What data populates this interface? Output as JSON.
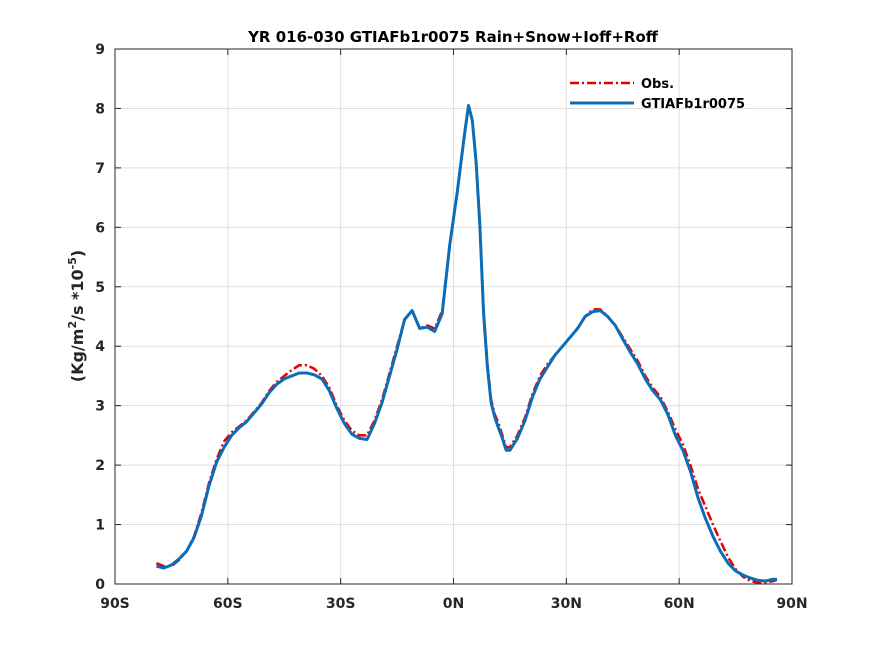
{
  "chart_data": {
    "type": "line",
    "title": "YR 016-030 GTIAFb1r0075  Rain+Snow+Ioff+Roff",
    "ylabel": {
      "prefix": "(Kg/m",
      "sup1": "2",
      "middle": "/s *10",
      "sup2": "-5",
      "suffix": ")"
    },
    "xlim": [
      -90,
      90
    ],
    "ylim": [
      0,
      9
    ],
    "grid": true,
    "legend_position": "top-right",
    "x_ticks": [
      {
        "value": -90,
        "label": "90S"
      },
      {
        "value": -60,
        "label": "60S"
      },
      {
        "value": -30,
        "label": "30S"
      },
      {
        "value": 0,
        "label": "0N"
      },
      {
        "value": 30,
        "label": "30N"
      },
      {
        "value": 60,
        "label": "60N"
      },
      {
        "value": 90,
        "label": "90N"
      }
    ],
    "y_ticks": [
      {
        "value": 0,
        "label": "0"
      },
      {
        "value": 1,
        "label": "1"
      },
      {
        "value": 2,
        "label": "2"
      },
      {
        "value": 3,
        "label": "3"
      },
      {
        "value": 4,
        "label": "4"
      },
      {
        "value": 5,
        "label": "5"
      },
      {
        "value": 6,
        "label": "6"
      },
      {
        "value": 7,
        "label": "7"
      },
      {
        "value": 8,
        "label": "8"
      },
      {
        "value": 9,
        "label": "9"
      }
    ],
    "series": [
      {
        "name": "Obs.",
        "color": "#e60000",
        "style": "dash-dot",
        "x": [
          -79,
          -77,
          -75,
          -73,
          -71,
          -69,
          -67,
          -65,
          -63,
          -61,
          -59,
          -57,
          -55,
          -53,
          -51,
          -49,
          -47,
          -45,
          -43,
          -41,
          -39,
          -37,
          -35,
          -33,
          -31,
          -29,
          -27,
          -25,
          -23,
          -21,
          -19,
          -17,
          -15,
          -13,
          -11,
          -9,
          -7,
          -5,
          -3,
          -1,
          1,
          2,
          3,
          4,
          5,
          6,
          7,
          8,
          9,
          10,
          11,
          12,
          13,
          14,
          15,
          17,
          19,
          21,
          23,
          25,
          27,
          29,
          31,
          33,
          35,
          37,
          39,
          41,
          43,
          45,
          47,
          49,
          51,
          53,
          55,
          57,
          59,
          61,
          63,
          65,
          67,
          69,
          71,
          73,
          75,
          77,
          79,
          81,
          83,
          85,
          86
        ],
        "y": [
          0.35,
          0.3,
          0.3,
          0.4,
          0.55,
          0.8,
          1.2,
          1.7,
          2.1,
          2.4,
          2.55,
          2.65,
          2.75,
          2.9,
          3.05,
          3.25,
          3.4,
          3.5,
          3.6,
          3.68,
          3.68,
          3.62,
          3.5,
          3.3,
          3.0,
          2.75,
          2.58,
          2.5,
          2.5,
          2.75,
          3.1,
          3.55,
          4.0,
          4.45,
          4.6,
          4.3,
          4.35,
          4.3,
          4.6,
          5.7,
          6.6,
          7.1,
          7.6,
          8.05,
          7.8,
          7.1,
          6.1,
          4.6,
          3.7,
          3.1,
          2.85,
          2.7,
          2.5,
          2.3,
          2.3,
          2.5,
          2.8,
          3.2,
          3.5,
          3.7,
          3.85,
          4.0,
          4.15,
          4.3,
          4.5,
          4.62,
          4.62,
          4.5,
          4.35,
          4.15,
          3.95,
          3.75,
          3.5,
          3.3,
          3.15,
          2.9,
          2.6,
          2.35,
          2.0,
          1.6,
          1.3,
          1.0,
          0.72,
          0.45,
          0.25,
          0.12,
          0.05,
          0.02,
          0.02,
          0.05,
          0.07
        ]
      },
      {
        "name": "GTIAFb1r0075",
        "color": "#0b6db7",
        "style": "solid",
        "x": [
          -79,
          -77,
          -75,
          -73,
          -71,
          -69,
          -67,
          -65,
          -63,
          -61,
          -59,
          -57,
          -55,
          -53,
          -51,
          -49,
          -47,
          -45,
          -43,
          -41,
          -39,
          -37,
          -35,
          -33,
          -31,
          -29,
          -27,
          -25,
          -23,
          -21,
          -19,
          -17,
          -15,
          -13,
          -11,
          -9,
          -7,
          -5,
          -3,
          -1,
          1,
          2,
          3,
          4,
          5,
          6,
          7,
          8,
          9,
          10,
          11,
          12,
          13,
          14,
          15,
          17,
          19,
          21,
          23,
          25,
          27,
          29,
          31,
          33,
          35,
          37,
          39,
          41,
          43,
          45,
          47,
          49,
          51,
          53,
          55,
          57,
          59,
          61,
          63,
          65,
          67,
          69,
          71,
          73,
          75,
          77,
          79,
          81,
          83,
          85,
          86
        ],
        "y": [
          0.3,
          0.27,
          0.32,
          0.42,
          0.55,
          0.78,
          1.15,
          1.65,
          2.05,
          2.3,
          2.5,
          2.63,
          2.73,
          2.88,
          3.03,
          3.22,
          3.36,
          3.45,
          3.5,
          3.55,
          3.55,
          3.52,
          3.45,
          3.25,
          2.95,
          2.7,
          2.52,
          2.45,
          2.43,
          2.7,
          3.05,
          3.5,
          3.95,
          4.45,
          4.6,
          4.3,
          4.32,
          4.25,
          4.55,
          5.7,
          6.6,
          7.1,
          7.6,
          8.05,
          7.8,
          7.1,
          6.05,
          4.55,
          3.65,
          3.05,
          2.8,
          2.62,
          2.45,
          2.25,
          2.25,
          2.45,
          2.75,
          3.15,
          3.45,
          3.65,
          3.85,
          4.0,
          4.15,
          4.3,
          4.5,
          4.58,
          4.6,
          4.5,
          4.35,
          4.12,
          3.9,
          3.7,
          3.45,
          3.25,
          3.1,
          2.85,
          2.5,
          2.25,
          1.9,
          1.45,
          1.1,
          0.8,
          0.55,
          0.35,
          0.22,
          0.15,
          0.1,
          0.06,
          0.05,
          0.08,
          0.08
        ]
      }
    ]
  }
}
